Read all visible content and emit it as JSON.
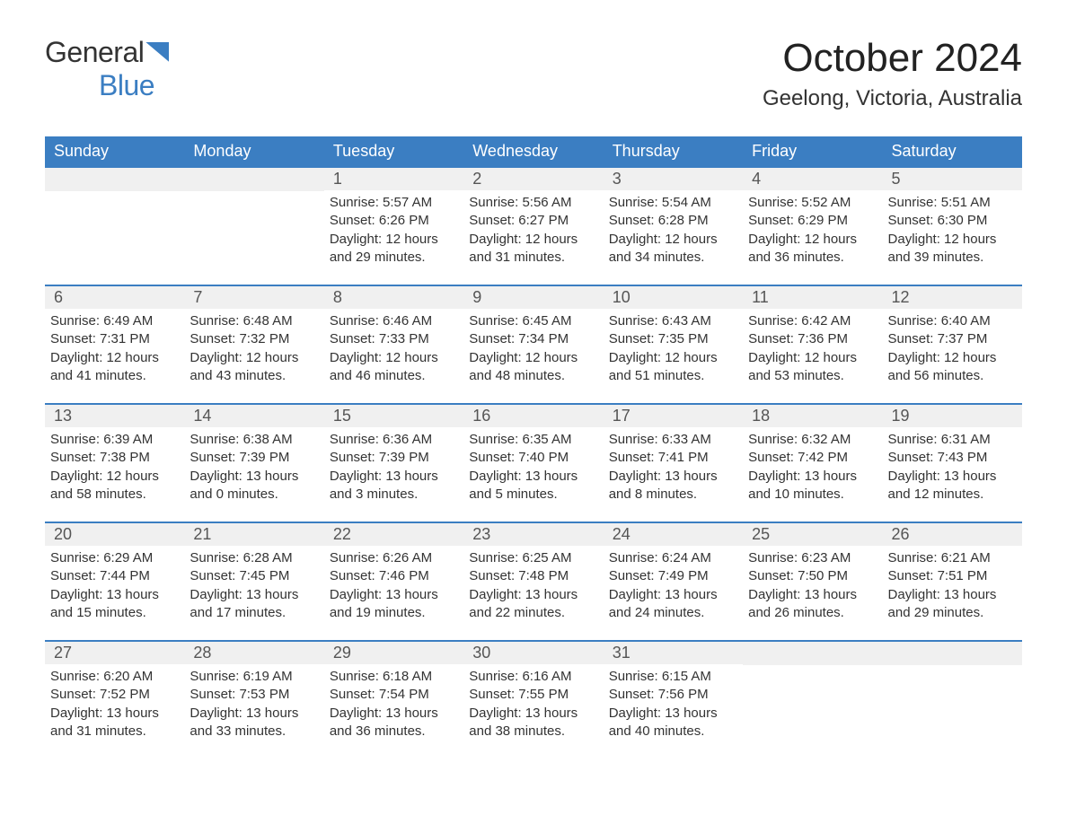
{
  "logo": {
    "general": "General",
    "blue": "Blue"
  },
  "header": {
    "month_title": "October 2024",
    "location": "Geelong, Victoria, Australia"
  },
  "colors": {
    "header_bg": "#3b7ec2",
    "header_text": "#ffffff",
    "daynum_bg": "#f0f0f0",
    "daynum_text": "#555555",
    "body_text": "#333333",
    "row_border": "#3b7ec2",
    "page_bg": "#ffffff"
  },
  "typography": {
    "month_title_fontsize": 44,
    "location_fontsize": 24,
    "weekday_fontsize": 18,
    "daynum_fontsize": 18,
    "cell_fontsize": 15,
    "logo_fontsize": 32
  },
  "weekdays": [
    "Sunday",
    "Monday",
    "Tuesday",
    "Wednesday",
    "Thursday",
    "Friday",
    "Saturday"
  ],
  "weeks": [
    [
      null,
      null,
      {
        "day": "1",
        "sunrise": "Sunrise: 5:57 AM",
        "sunset": "Sunset: 6:26 PM",
        "daylight1": "Daylight: 12 hours",
        "daylight2": "and 29 minutes."
      },
      {
        "day": "2",
        "sunrise": "Sunrise: 5:56 AM",
        "sunset": "Sunset: 6:27 PM",
        "daylight1": "Daylight: 12 hours",
        "daylight2": "and 31 minutes."
      },
      {
        "day": "3",
        "sunrise": "Sunrise: 5:54 AM",
        "sunset": "Sunset: 6:28 PM",
        "daylight1": "Daylight: 12 hours",
        "daylight2": "and 34 minutes."
      },
      {
        "day": "4",
        "sunrise": "Sunrise: 5:52 AM",
        "sunset": "Sunset: 6:29 PM",
        "daylight1": "Daylight: 12 hours",
        "daylight2": "and 36 minutes."
      },
      {
        "day": "5",
        "sunrise": "Sunrise: 5:51 AM",
        "sunset": "Sunset: 6:30 PM",
        "daylight1": "Daylight: 12 hours",
        "daylight2": "and 39 minutes."
      }
    ],
    [
      {
        "day": "6",
        "sunrise": "Sunrise: 6:49 AM",
        "sunset": "Sunset: 7:31 PM",
        "daylight1": "Daylight: 12 hours",
        "daylight2": "and 41 minutes."
      },
      {
        "day": "7",
        "sunrise": "Sunrise: 6:48 AM",
        "sunset": "Sunset: 7:32 PM",
        "daylight1": "Daylight: 12 hours",
        "daylight2": "and 43 minutes."
      },
      {
        "day": "8",
        "sunrise": "Sunrise: 6:46 AM",
        "sunset": "Sunset: 7:33 PM",
        "daylight1": "Daylight: 12 hours",
        "daylight2": "and 46 minutes."
      },
      {
        "day": "9",
        "sunrise": "Sunrise: 6:45 AM",
        "sunset": "Sunset: 7:34 PM",
        "daylight1": "Daylight: 12 hours",
        "daylight2": "and 48 minutes."
      },
      {
        "day": "10",
        "sunrise": "Sunrise: 6:43 AM",
        "sunset": "Sunset: 7:35 PM",
        "daylight1": "Daylight: 12 hours",
        "daylight2": "and 51 minutes."
      },
      {
        "day": "11",
        "sunrise": "Sunrise: 6:42 AM",
        "sunset": "Sunset: 7:36 PM",
        "daylight1": "Daylight: 12 hours",
        "daylight2": "and 53 minutes."
      },
      {
        "day": "12",
        "sunrise": "Sunrise: 6:40 AM",
        "sunset": "Sunset: 7:37 PM",
        "daylight1": "Daylight: 12 hours",
        "daylight2": "and 56 minutes."
      }
    ],
    [
      {
        "day": "13",
        "sunrise": "Sunrise: 6:39 AM",
        "sunset": "Sunset: 7:38 PM",
        "daylight1": "Daylight: 12 hours",
        "daylight2": "and 58 minutes."
      },
      {
        "day": "14",
        "sunrise": "Sunrise: 6:38 AM",
        "sunset": "Sunset: 7:39 PM",
        "daylight1": "Daylight: 13 hours",
        "daylight2": "and 0 minutes."
      },
      {
        "day": "15",
        "sunrise": "Sunrise: 6:36 AM",
        "sunset": "Sunset: 7:39 PM",
        "daylight1": "Daylight: 13 hours",
        "daylight2": "and 3 minutes."
      },
      {
        "day": "16",
        "sunrise": "Sunrise: 6:35 AM",
        "sunset": "Sunset: 7:40 PM",
        "daylight1": "Daylight: 13 hours",
        "daylight2": "and 5 minutes."
      },
      {
        "day": "17",
        "sunrise": "Sunrise: 6:33 AM",
        "sunset": "Sunset: 7:41 PM",
        "daylight1": "Daylight: 13 hours",
        "daylight2": "and 8 minutes."
      },
      {
        "day": "18",
        "sunrise": "Sunrise: 6:32 AM",
        "sunset": "Sunset: 7:42 PM",
        "daylight1": "Daylight: 13 hours",
        "daylight2": "and 10 minutes."
      },
      {
        "day": "19",
        "sunrise": "Sunrise: 6:31 AM",
        "sunset": "Sunset: 7:43 PM",
        "daylight1": "Daylight: 13 hours",
        "daylight2": "and 12 minutes."
      }
    ],
    [
      {
        "day": "20",
        "sunrise": "Sunrise: 6:29 AM",
        "sunset": "Sunset: 7:44 PM",
        "daylight1": "Daylight: 13 hours",
        "daylight2": "and 15 minutes."
      },
      {
        "day": "21",
        "sunrise": "Sunrise: 6:28 AM",
        "sunset": "Sunset: 7:45 PM",
        "daylight1": "Daylight: 13 hours",
        "daylight2": "and 17 minutes."
      },
      {
        "day": "22",
        "sunrise": "Sunrise: 6:26 AM",
        "sunset": "Sunset: 7:46 PM",
        "daylight1": "Daylight: 13 hours",
        "daylight2": "and 19 minutes."
      },
      {
        "day": "23",
        "sunrise": "Sunrise: 6:25 AM",
        "sunset": "Sunset: 7:48 PM",
        "daylight1": "Daylight: 13 hours",
        "daylight2": "and 22 minutes."
      },
      {
        "day": "24",
        "sunrise": "Sunrise: 6:24 AM",
        "sunset": "Sunset: 7:49 PM",
        "daylight1": "Daylight: 13 hours",
        "daylight2": "and 24 minutes."
      },
      {
        "day": "25",
        "sunrise": "Sunrise: 6:23 AM",
        "sunset": "Sunset: 7:50 PM",
        "daylight1": "Daylight: 13 hours",
        "daylight2": "and 26 minutes."
      },
      {
        "day": "26",
        "sunrise": "Sunrise: 6:21 AM",
        "sunset": "Sunset: 7:51 PM",
        "daylight1": "Daylight: 13 hours",
        "daylight2": "and 29 minutes."
      }
    ],
    [
      {
        "day": "27",
        "sunrise": "Sunrise: 6:20 AM",
        "sunset": "Sunset: 7:52 PM",
        "daylight1": "Daylight: 13 hours",
        "daylight2": "and 31 minutes."
      },
      {
        "day": "28",
        "sunrise": "Sunrise: 6:19 AM",
        "sunset": "Sunset: 7:53 PM",
        "daylight1": "Daylight: 13 hours",
        "daylight2": "and 33 minutes."
      },
      {
        "day": "29",
        "sunrise": "Sunrise: 6:18 AM",
        "sunset": "Sunset: 7:54 PM",
        "daylight1": "Daylight: 13 hours",
        "daylight2": "and 36 minutes."
      },
      {
        "day": "30",
        "sunrise": "Sunrise: 6:16 AM",
        "sunset": "Sunset: 7:55 PM",
        "daylight1": "Daylight: 13 hours",
        "daylight2": "and 38 minutes."
      },
      {
        "day": "31",
        "sunrise": "Sunrise: 6:15 AM",
        "sunset": "Sunset: 7:56 PM",
        "daylight1": "Daylight: 13 hours",
        "daylight2": "and 40 minutes."
      },
      null,
      null
    ]
  ]
}
